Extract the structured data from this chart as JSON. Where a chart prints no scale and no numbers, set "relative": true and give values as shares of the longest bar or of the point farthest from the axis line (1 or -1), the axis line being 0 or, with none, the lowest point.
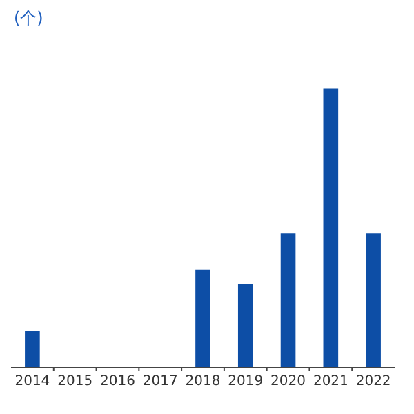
{
  "chart_data": {
    "type": "bar",
    "ylabel": "(个)",
    "relative": true,
    "categories": [
      "2014",
      "2015",
      "2016",
      "2017",
      "2018",
      "2019",
      "2020",
      "2021",
      "2022"
    ],
    "values": [
      0.13,
      0,
      0,
      0,
      0.35,
      0.3,
      0.48,
      1,
      0.48
    ],
    "color": "#0d4ea6",
    "grid": false,
    "legend": false
  }
}
